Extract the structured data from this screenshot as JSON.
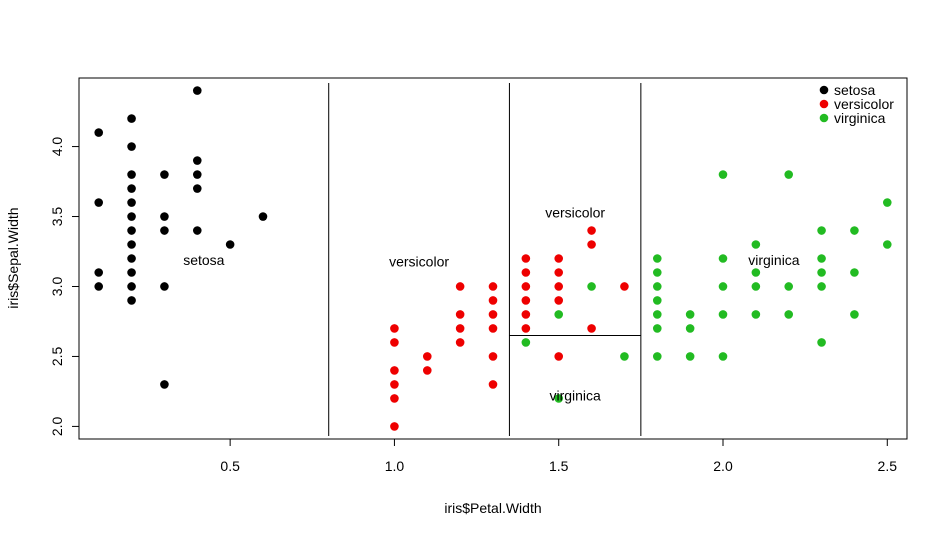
{
  "chart_data": {
    "type": "scatter",
    "xlabel": "iris$Petal.Width",
    "ylabel": "iris$Sepal.Width",
    "xlim": [
      0.04,
      2.56
    ],
    "ylim": [
      1.91,
      4.49
    ],
    "x_ticks": [
      0.5,
      1.0,
      1.5,
      2.0,
      2.5
    ],
    "x_tick_labels": [
      "0.5",
      "1.0",
      "1.5",
      "2.0",
      "2.5"
    ],
    "y_ticks": [
      2.0,
      2.5,
      3.0,
      3.5,
      4.0
    ],
    "y_tick_labels": [
      "2.0",
      "2.5",
      "3.0",
      "3.5",
      "4.0"
    ],
    "grid": false,
    "legend": {
      "placement": "top-right",
      "entries": [
        {
          "name": "setosa",
          "color": "#000000"
        },
        {
          "name": "versicolor",
          "color": "#ee0000"
        },
        {
          "name": "virginica",
          "color": "#22bb22"
        }
      ]
    },
    "series": [
      {
        "name": "setosa",
        "color": "#000000",
        "points": [
          [
            0.1,
            4.1
          ],
          [
            0.1,
            3.6
          ],
          [
            0.1,
            3.1
          ],
          [
            0.1,
            3.0
          ],
          [
            0.2,
            4.2
          ],
          [
            0.2,
            4.0
          ],
          [
            0.2,
            3.8
          ],
          [
            0.2,
            3.7
          ],
          [
            0.2,
            3.6
          ],
          [
            0.2,
            3.5
          ],
          [
            0.2,
            3.4
          ],
          [
            0.2,
            3.3
          ],
          [
            0.2,
            3.2
          ],
          [
            0.2,
            3.1
          ],
          [
            0.2,
            3.0
          ],
          [
            0.2,
            2.9
          ],
          [
            0.3,
            3.8
          ],
          [
            0.3,
            3.5
          ],
          [
            0.3,
            3.4
          ],
          [
            0.3,
            3.0
          ],
          [
            0.3,
            2.3
          ],
          [
            0.4,
            4.4
          ],
          [
            0.4,
            3.9
          ],
          [
            0.4,
            3.8
          ],
          [
            0.4,
            3.7
          ],
          [
            0.4,
            3.4
          ],
          [
            0.5,
            3.3
          ],
          [
            0.6,
            3.5
          ]
        ]
      },
      {
        "name": "versicolor",
        "color": "#ee0000",
        "points": [
          [
            1.0,
            2.7
          ],
          [
            1.0,
            2.6
          ],
          [
            1.0,
            2.4
          ],
          [
            1.0,
            2.3
          ],
          [
            1.0,
            2.2
          ],
          [
            1.0,
            2.0
          ],
          [
            1.1,
            2.5
          ],
          [
            1.1,
            2.4
          ],
          [
            1.2,
            3.0
          ],
          [
            1.2,
            2.8
          ],
          [
            1.2,
            2.7
          ],
          [
            1.2,
            2.6
          ],
          [
            1.3,
            3.0
          ],
          [
            1.3,
            2.9
          ],
          [
            1.3,
            2.8
          ],
          [
            1.3,
            2.7
          ],
          [
            1.3,
            2.5
          ],
          [
            1.3,
            2.3
          ],
          [
            1.4,
            3.2
          ],
          [
            1.4,
            3.1
          ],
          [
            1.4,
            3.0
          ],
          [
            1.4,
            2.9
          ],
          [
            1.4,
            2.8
          ],
          [
            1.4,
            2.7
          ],
          [
            1.5,
            3.2
          ],
          [
            1.5,
            3.1
          ],
          [
            1.5,
            3.0
          ],
          [
            1.5,
            2.9
          ],
          [
            1.5,
            2.5
          ],
          [
            1.6,
            3.4
          ],
          [
            1.6,
            3.3
          ],
          [
            1.6,
            2.7
          ],
          [
            1.7,
            3.0
          ]
        ]
      },
      {
        "name": "virginica",
        "color": "#22bb22",
        "points": [
          [
            1.4,
            2.6
          ],
          [
            1.5,
            2.8
          ],
          [
            1.5,
            2.2
          ],
          [
            1.6,
            3.0
          ],
          [
            1.7,
            2.5
          ],
          [
            1.8,
            3.2
          ],
          [
            1.8,
            3.1
          ],
          [
            1.8,
            3.0
          ],
          [
            1.8,
            2.9
          ],
          [
            1.8,
            2.8
          ],
          [
            1.8,
            2.7
          ],
          [
            1.8,
            2.5
          ],
          [
            1.9,
            2.8
          ],
          [
            1.9,
            2.7
          ],
          [
            1.9,
            2.5
          ],
          [
            2.0,
            3.8
          ],
          [
            2.0,
            3.2
          ],
          [
            2.0,
            3.0
          ],
          [
            2.0,
            2.8
          ],
          [
            2.0,
            2.5
          ],
          [
            2.1,
            3.3
          ],
          [
            2.1,
            3.1
          ],
          [
            2.1,
            3.0
          ],
          [
            2.1,
            2.8
          ],
          [
            2.2,
            3.8
          ],
          [
            2.2,
            3.0
          ],
          [
            2.2,
            2.8
          ],
          [
            2.3,
            3.4
          ],
          [
            2.3,
            3.2
          ],
          [
            2.3,
            3.1
          ],
          [
            2.3,
            3.0
          ],
          [
            2.3,
            2.6
          ],
          [
            2.4,
            3.4
          ],
          [
            2.4,
            3.1
          ],
          [
            2.4,
            2.8
          ],
          [
            2.5,
            3.6
          ],
          [
            2.5,
            3.3
          ]
        ]
      }
    ],
    "partition_lines": [
      {
        "x": [
          0.8,
          0.8
        ],
        "y": [
          1.91,
          4.49
        ]
      },
      {
        "x": [
          1.35,
          1.35
        ],
        "y": [
          1.91,
          4.49
        ]
      },
      {
        "x": [
          1.75,
          1.75
        ],
        "y": [
          1.91,
          4.49
        ]
      },
      {
        "x": [
          1.35,
          1.75
        ],
        "y": [
          2.65,
          2.65
        ]
      }
    ],
    "annotations": [
      {
        "text": "setosa",
        "x": 0.42,
        "y": 3.19
      },
      {
        "text": "versicolor",
        "x": 1.075,
        "y": 3.18
      },
      {
        "text": "versicolor",
        "x": 1.55,
        "y": 3.53
      },
      {
        "text": "virginica",
        "x": 1.55,
        "y": 2.22
      },
      {
        "text": "virginica",
        "x": 2.155,
        "y": 3.19
      }
    ]
  }
}
